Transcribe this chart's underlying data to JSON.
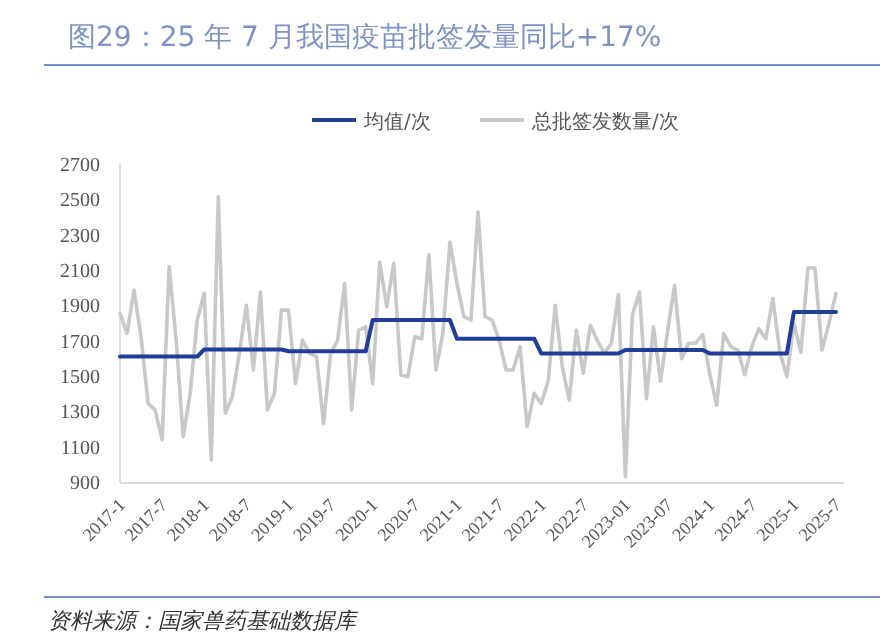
{
  "chart_data": {
    "type": "line",
    "title": "图29：25 年 7 月我国疫苗批签发量同比+17%",
    "annotations": [
      "资料来源：国家兽药基础数据库"
    ],
    "categories": [
      "2017-1",
      null,
      null,
      null,
      null,
      null,
      "2017-7",
      null,
      null,
      null,
      null,
      null,
      "2018-1",
      null,
      null,
      null,
      null,
      null,
      "2018-7",
      null,
      null,
      null,
      null,
      null,
      "2019-1",
      null,
      null,
      null,
      null,
      null,
      "2019-7",
      null,
      null,
      null,
      null,
      null,
      "2020-1",
      null,
      null,
      null,
      null,
      null,
      "2020-7",
      null,
      null,
      null,
      null,
      null,
      "2021-1",
      null,
      null,
      null,
      null,
      null,
      "2021-7",
      null,
      null,
      null,
      null,
      null,
      "2022-1",
      null,
      null,
      null,
      null,
      null,
      "2022-7",
      null,
      null,
      null,
      null,
      null,
      "2023-01",
      null,
      null,
      null,
      null,
      null,
      "2023-07",
      null,
      null,
      null,
      null,
      null,
      "2024-1",
      null,
      null,
      null,
      null,
      null,
      "2024-7",
      null,
      null,
      null,
      null,
      null,
      "2025-1",
      null,
      null,
      null,
      null,
      null,
      "2025-7"
    ],
    "series": [
      {
        "name": "均值/次",
        "color": "#1f3d99",
        "values": [
          1610,
          1610,
          1610,
          1610,
          1610,
          1610,
          1610,
          1610,
          1610,
          1610,
          1610,
          1610,
          1650,
          1650,
          1650,
          1650,
          1650,
          1650,
          1650,
          1650,
          1650,
          1650,
          1650,
          1650,
          1640,
          1640,
          1640,
          1640,
          1640,
          1640,
          1640,
          1640,
          1640,
          1640,
          1640,
          1640,
          1817,
          1817,
          1817,
          1817,
          1817,
          1817,
          1817,
          1817,
          1817,
          1817,
          1817,
          1817,
          1711,
          1711,
          1711,
          1711,
          1711,
          1711,
          1711,
          1711,
          1711,
          1711,
          1711,
          1711,
          1628,
          1628,
          1628,
          1628,
          1628,
          1628,
          1628,
          1628,
          1628,
          1628,
          1628,
          1628,
          1647,
          1647,
          1647,
          1647,
          1647,
          1647,
          1647,
          1647,
          1647,
          1647,
          1647,
          1647,
          1628,
          1628,
          1628,
          1628,
          1628,
          1628,
          1628,
          1628,
          1628,
          1628,
          1628,
          1628,
          1862,
          1862,
          1862,
          1862,
          1862,
          1862,
          1862
        ]
      },
      {
        "name": "总批签发数量/次",
        "color": "#c8c8c8",
        "values": [
          1854,
          1741,
          1987,
          1720,
          1345,
          1308,
          1138,
          2119,
          1704,
          1157,
          1402,
          1817,
          1968,
          1025,
          2515,
          1289,
          1383,
          1628,
          1900,
          1534,
          1975,
          1308,
          1402,
          1873,
          1873,
          1458,
          1704,
          1628,
          1610,
          1232,
          1628,
          1700,
          2024,
          1308,
          1760,
          1779,
          1458,
          2145,
          1892,
          2138,
          1506,
          1496,
          1722,
          1711,
          2186,
          1534,
          1741,
          2258,
          2024,
          1836,
          1817,
          2428,
          1836,
          1817,
          1704,
          1534,
          1534,
          1666,
          1213,
          1402,
          1345,
          1470,
          1900,
          1553,
          1364,
          1760,
          1515,
          1787,
          1700,
          1628,
          1685,
          1960,
          930,
          1847,
          1975,
          1372,
          1779,
          1470,
          1750,
          2013,
          1598,
          1685,
          1685,
          1734,
          1515,
          1334,
          1741,
          1666,
          1647,
          1507,
          1666,
          1768,
          1711,
          1938,
          1636,
          1496,
          1798,
          1636,
          2111,
          2111,
          1647,
          1798,
          1968
        ]
      }
    ],
    "ylim": [
      900,
      2700
    ],
    "yticks": [
      900,
      1100,
      1300,
      1500,
      1700,
      1900,
      2100,
      2300,
      2500,
      2700
    ],
    "legend": "top",
    "grid": false
  }
}
